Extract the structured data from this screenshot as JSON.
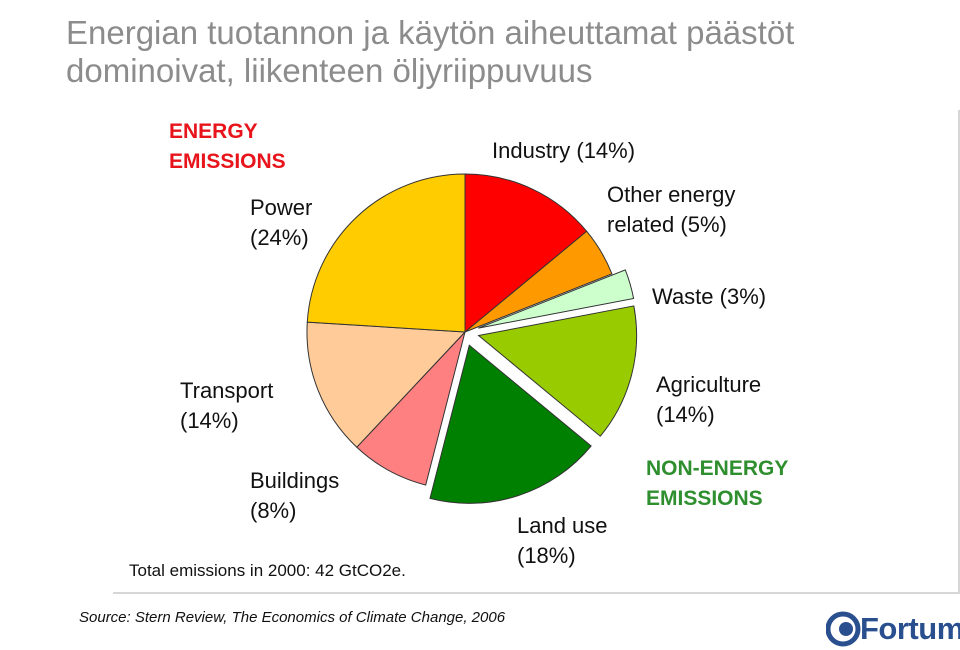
{
  "title": {
    "line1": "Energian tuotannon ja käytön aiheuttamat päästöt",
    "line2": "dominoivat, liikenteen öljyriippuvuus"
  },
  "chart_data": {
    "type": "pie",
    "unit": "%",
    "groups": [
      {
        "label_line1": "ENERGY",
        "label_line2": "EMISSIONS",
        "color": "#e8141b"
      },
      {
        "label_line1": "NON-ENERGY",
        "label_line2": "EMISSIONS",
        "color": "#2f8f2f"
      }
    ],
    "slices": [
      {
        "name": "Industry",
        "value": 14,
        "pct_label": "(14%)",
        "group": "energy",
        "color": "#ff0000"
      },
      {
        "name": "Other energy related",
        "line1": "Other energy",
        "line2": "related (5%)",
        "value": 5,
        "group": "energy",
        "color": "#ff9900"
      },
      {
        "name": "Waste",
        "value": 3,
        "pct_label": "(3%)",
        "group": "non-energy",
        "color": "#ccffcc"
      },
      {
        "name": "Agriculture",
        "value": 14,
        "pct_label": "(14%)",
        "group": "non-energy",
        "color": "#99cc00"
      },
      {
        "name": "Land use",
        "value": 18,
        "pct_label": "(18%)",
        "group": "non-energy",
        "color": "#008000"
      },
      {
        "name": "Buildings",
        "value": 8,
        "pct_label": "(8%)",
        "group": "energy",
        "color": "#ff8080"
      },
      {
        "name": "Transport",
        "value": 14,
        "pct_label": "(14%)",
        "group": "energy",
        "color": "#ffcc99"
      },
      {
        "name": "Power",
        "value": 24,
        "pct_label": "(24%)",
        "group": "energy",
        "color": "#ffcc00"
      }
    ]
  },
  "notes": {
    "total": "Total emissions in 2000: 42 GtCO2e.",
    "source": "Source: Stern Review, The Economics of Climate Change, 2006"
  },
  "logo": {
    "text": "Fortum",
    "color": "#2a4f8f"
  }
}
